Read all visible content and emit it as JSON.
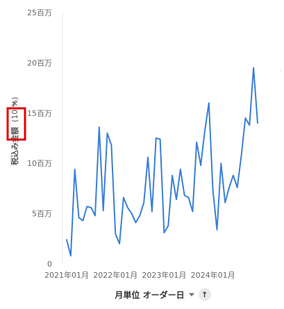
{
  "colors": {
    "line": "#3a7fd5",
    "highlight_box": "#e00000",
    "text": "#666666",
    "axis_line": "#e5e5e5"
  },
  "y_axis": {
    "title": "税込み金額",
    "title_suffix": "(10 %)",
    "tick_labels": [
      "25百万",
      "20百万",
      "15百万",
      "10百万",
      "5百万",
      "0"
    ],
    "collapse_icon": "triangle-right-icon"
  },
  "x_axis": {
    "title": "月単位 オーダー日",
    "tick_labels": [
      "2021年01月",
      "2022年01月",
      "2023年01月",
      "2024年01月"
    ],
    "dropdown_icon": "chevron-down-icon",
    "sort_icon": "arrow-up-icon",
    "sort_glyph": "↑"
  },
  "chart_data": {
    "type": "line",
    "xlabel": "月単位 オーダー日",
    "ylabel": "税込み金額 (10 %)",
    "ylim": [
      0,
      25
    ],
    "y_unit": "百万",
    "grid": false,
    "x": [
      "2021-01",
      "2021-02",
      "2021-03",
      "2021-04",
      "2021-05",
      "2021-06",
      "2021-07",
      "2021-08",
      "2021-09",
      "2021-10",
      "2021-11",
      "2021-12",
      "2022-01",
      "2022-02",
      "2022-03",
      "2022-04",
      "2022-05",
      "2022-06",
      "2022-07",
      "2022-08",
      "2022-09",
      "2022-10",
      "2022-11",
      "2022-12",
      "2023-01",
      "2023-02",
      "2023-03",
      "2023-04",
      "2023-05",
      "2023-06",
      "2023-07",
      "2023-08",
      "2023-09",
      "2023-10",
      "2023-11",
      "2023-12",
      "2024-01",
      "2024-02",
      "2024-03",
      "2024-04",
      "2024-05",
      "2024-06",
      "2024-07",
      "2024-08",
      "2024-09",
      "2024-10",
      "2024-11",
      "2024-12"
    ],
    "series": [
      {
        "values": [
          2.4,
          0.8,
          9.4,
          4.6,
          4.3,
          5.7,
          5.6,
          4.8,
          13.6,
          5.3,
          13.0,
          11.8,
          3.0,
          2.0,
          6.6,
          5.6,
          5.0,
          4.1,
          4.8,
          6.1,
          10.6,
          5.2,
          12.5,
          12.4,
          3.1,
          3.8,
          8.8,
          6.4,
          9.4,
          6.8,
          6.6,
          5.2,
          12.1,
          9.8,
          13.2,
          16.0,
          7.3,
          3.4,
          10.0,
          6.1,
          7.6,
          8.8,
          7.6,
          10.8,
          14.5,
          13.8,
          19.5,
          14.0
        ]
      }
    ]
  }
}
